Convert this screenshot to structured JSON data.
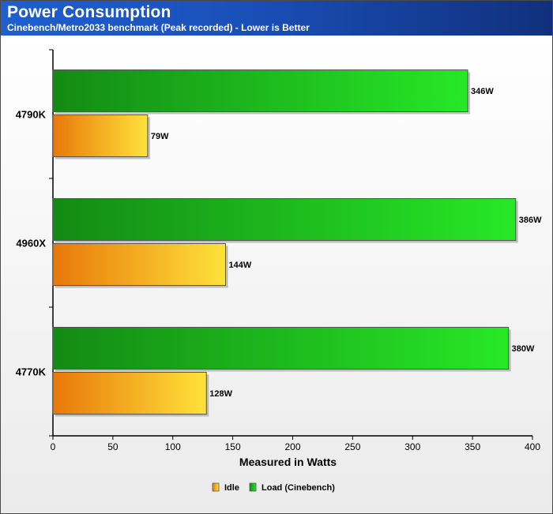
{
  "header": {
    "title": "Power Consumption",
    "subtitle": "Cinebench/Metro2033 benchmark (Peak recorded) - Lower is Better"
  },
  "chart_data": {
    "type": "bar",
    "orientation": "horizontal",
    "title": "Power Consumption",
    "subtitle": "Cinebench/Metro2033 benchmark (Peak recorded) - Lower is Better",
    "categories": [
      "4790K",
      "4960X",
      "4770K"
    ],
    "series": [
      {
        "name": "Load (Cinebench)",
        "values": [
          346,
          386,
          380
        ],
        "labels": [
          "346W",
          "386W",
          "380W"
        ],
        "color": "#1fbf1f"
      },
      {
        "name": "Idle",
        "values": [
          79,
          144,
          128
        ],
        "labels": [
          "79W",
          "144W",
          "128W"
        ],
        "color": "#f0a020"
      }
    ],
    "xlabel": "Measured in Watts",
    "ylabel": "",
    "xlim": [
      0,
      400
    ],
    "xticks": [
      0,
      50,
      100,
      150,
      200,
      250,
      300,
      350,
      400
    ],
    "legend": {
      "position": "bottom",
      "items": [
        "Idle",
        "Load (Cinebench)"
      ]
    },
    "grid": false
  }
}
